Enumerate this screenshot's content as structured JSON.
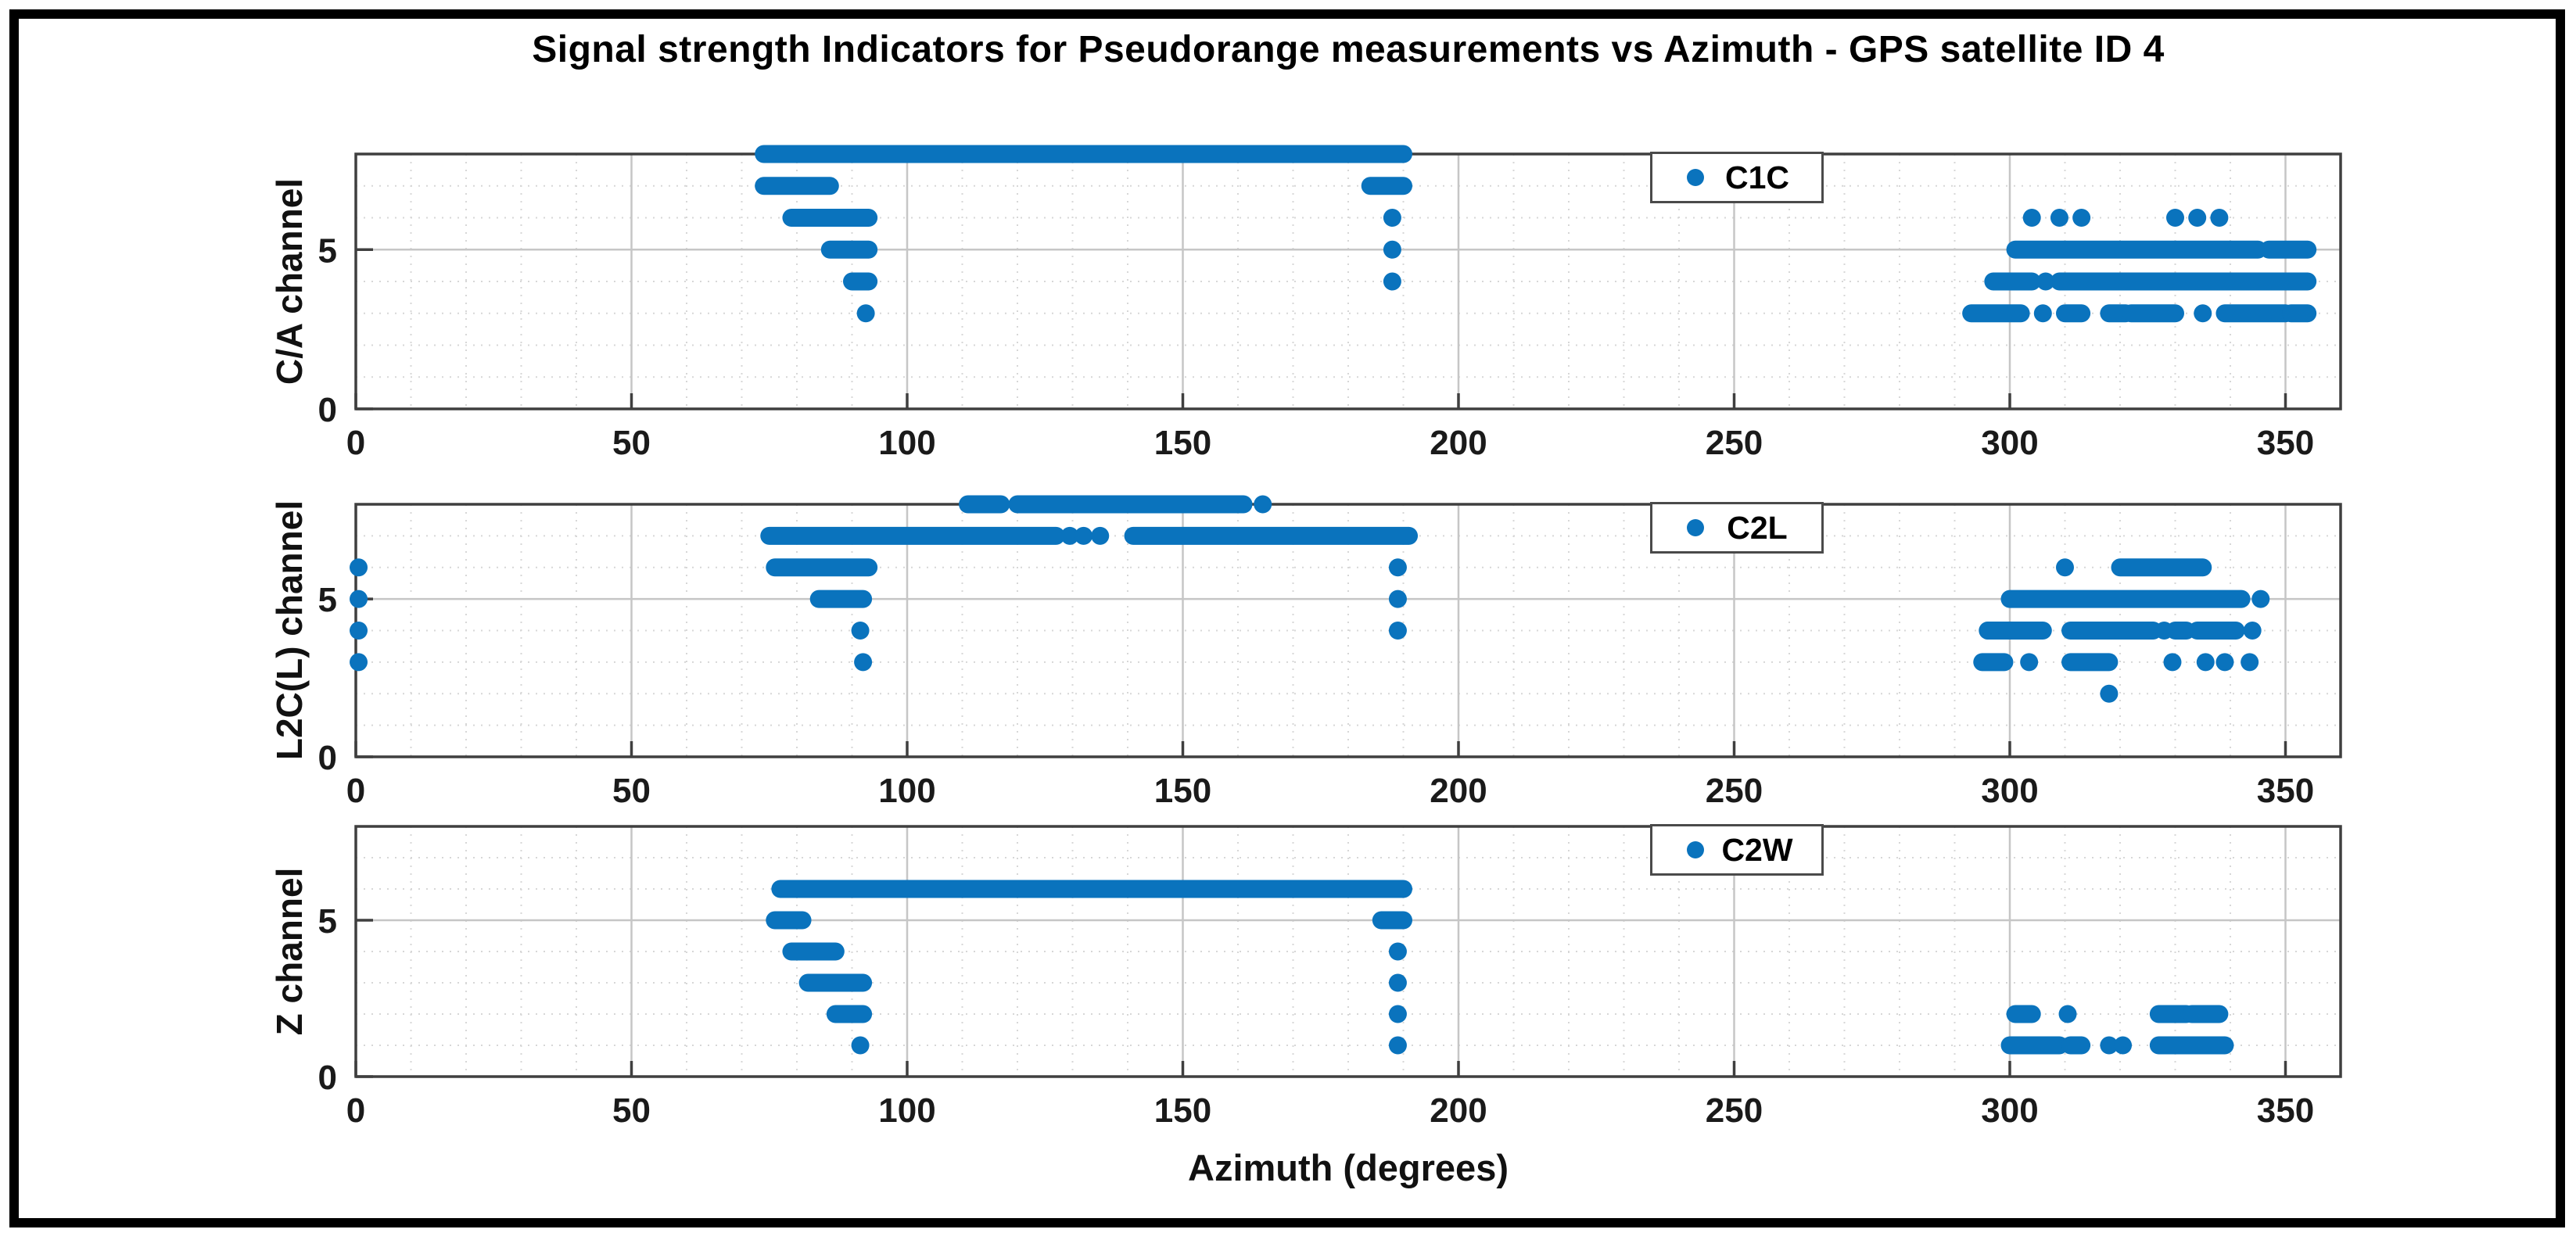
{
  "figure": {
    "title": "Signal strength Indicators for Pseudorange measurements vs Azimuth - GPS satellite ID 4",
    "xlabel": "Azimuth (degrees)",
    "background": "#ffffff",
    "border_color": "#000000",
    "marker_color": "#0a73bd",
    "grid_minor_color": "#d7d7d7",
    "grid_major_color": "#c6c6c6",
    "axis_color": "#3f3f3f",
    "tick_text_color": "#1a1a1a"
  },
  "chart_data": [
    {
      "type": "scatter",
      "panel": "top",
      "ylabel": "C/A channel",
      "legend": "C1C",
      "xlim": [
        0,
        360
      ],
      "ylim": [
        0,
        8
      ],
      "xticks": [
        0,
        50,
        100,
        150,
        200,
        250,
        300,
        350
      ],
      "yticks": [
        0,
        5
      ],
      "x_minor_step": 10,
      "y_minor_step": 1,
      "grid": "on",
      "legend_position": "north-right-inside",
      "runs": [
        [
          8,
          74,
          190
        ],
        [
          7,
          74,
          86
        ],
        [
          7,
          184,
          190
        ],
        [
          6,
          79,
          93
        ],
        [
          5,
          86,
          93
        ],
        [
          4,
          90,
          93
        ],
        [
          5,
          301,
          345
        ],
        [
          5,
          347,
          354
        ],
        [
          4,
          297,
          304
        ],
        [
          4,
          309,
          354
        ],
        [
          3,
          293,
          302
        ],
        [
          3,
          310,
          313
        ],
        [
          3,
          318,
          321
        ],
        [
          3,
          322,
          330
        ],
        [
          3,
          339,
          350
        ],
        [
          3,
          351,
          354
        ]
      ],
      "dots": [
        [
          6,
          188
        ],
        [
          5,
          188
        ],
        [
          4,
          188
        ],
        [
          3,
          92.5
        ],
        [
          6,
          304
        ],
        [
          6,
          309
        ],
        [
          6,
          313
        ],
        [
          6,
          330
        ],
        [
          6,
          334
        ],
        [
          6,
          338
        ],
        [
          4,
          306.5
        ],
        [
          3,
          306
        ],
        [
          3,
          335
        ]
      ]
    },
    {
      "type": "scatter",
      "panel": "middle",
      "ylabel": "L2C(L) channel",
      "legend": "C2L",
      "xlim": [
        0,
        360
      ],
      "ylim": [
        0,
        8
      ],
      "xticks": [
        0,
        50,
        100,
        150,
        200,
        250,
        300,
        350
      ],
      "yticks": [
        0,
        5
      ],
      "x_minor_step": 10,
      "y_minor_step": 1,
      "grid": "on",
      "legend_position": "north-right-inside",
      "runs": [
        [
          8,
          111,
          117
        ],
        [
          8,
          120,
          161
        ],
        [
          7,
          75,
          127
        ],
        [
          7,
          141,
          191
        ],
        [
          6,
          76,
          93
        ],
        [
          5,
          84,
          92
        ],
        [
          6,
          320,
          335
        ],
        [
          5,
          300,
          342
        ],
        [
          4,
          296,
          306
        ],
        [
          4,
          311,
          326
        ],
        [
          4,
          330,
          332
        ],
        [
          4,
          334,
          341
        ],
        [
          3,
          295,
          299
        ],
        [
          3,
          311,
          318
        ]
      ],
      "dots": [
        [
          6,
          0.5
        ],
        [
          5,
          0.5
        ],
        [
          4,
          0.5
        ],
        [
          3,
          0.5
        ],
        [
          8,
          164.5
        ],
        [
          7,
          129.5
        ],
        [
          7,
          132
        ],
        [
          7,
          135
        ],
        [
          6,
          189
        ],
        [
          5,
          189
        ],
        [
          4,
          91.5
        ],
        [
          4,
          189
        ],
        [
          3,
          92
        ],
        [
          6,
          310
        ],
        [
          5,
          345.5
        ],
        [
          4,
          328
        ],
        [
          4,
          344
        ],
        [
          3,
          303.5
        ],
        [
          3,
          329.5
        ],
        [
          3,
          335.5
        ],
        [
          3,
          339
        ],
        [
          3,
          343.5
        ],
        [
          2,
          318
        ]
      ]
    },
    {
      "type": "scatter",
      "panel": "bottom",
      "ylabel": "Z channel",
      "legend": "C2W",
      "xlim": [
        0,
        360
      ],
      "ylim": [
        0,
        8
      ],
      "xticks": [
        0,
        50,
        100,
        150,
        200,
        250,
        300,
        350
      ],
      "yticks": [
        0,
        5
      ],
      "x_minor_step": 10,
      "y_minor_step": 1,
      "grid": "on",
      "legend_position": "north-right-inside",
      "runs": [
        [
          6,
          77,
          190
        ],
        [
          5,
          76,
          81
        ],
        [
          5,
          186,
          190
        ],
        [
          4,
          79,
          87
        ],
        [
          3,
          82,
          92
        ],
        [
          2,
          87,
          92
        ],
        [
          2,
          301,
          304
        ],
        [
          2,
          327,
          332
        ],
        [
          2,
          333,
          338
        ],
        [
          1,
          300,
          309
        ],
        [
          1,
          311,
          313
        ],
        [
          1,
          327,
          339
        ]
      ],
      "dots": [
        [
          4,
          189
        ],
        [
          3,
          189
        ],
        [
          2,
          189
        ],
        [
          1,
          91.5
        ],
        [
          1,
          189
        ],
        [
          2,
          310.5
        ],
        [
          1,
          318
        ],
        [
          1,
          320.5
        ]
      ]
    }
  ]
}
